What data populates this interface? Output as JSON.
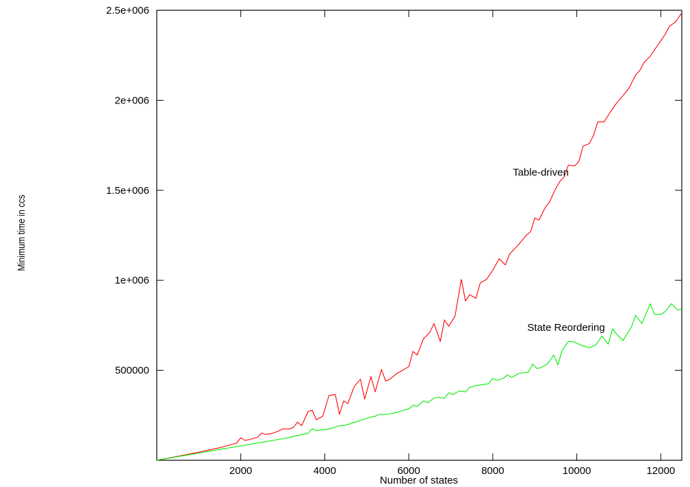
{
  "chart_data": {
    "type": "line",
    "title": "",
    "xlabel": "Number of states",
    "ylabel": "Minimum time in ccs",
    "xlim": [
      0,
      12500
    ],
    "ylim": [
      0,
      2500000
    ],
    "x_ticks": [
      2000,
      4000,
      6000,
      8000,
      10000,
      12000
    ],
    "x_tick_labels": [
      "2000",
      "4000",
      "6000",
      "8000",
      "10000",
      "12000"
    ],
    "y_ticks": [
      500000,
      1000000,
      1500000,
      2000000,
      2500000
    ],
    "y_tick_labels": [
      "500000",
      "1e+006",
      "1.5e+006",
      "2e+006",
      "2.5e+006"
    ],
    "grid": false,
    "legend": "none (series labeled inline on the plot)",
    "series": [
      {
        "name": "Table-driven",
        "color": "#ff0000",
        "label_at": [
          8000,
          1600000
        ],
        "points": [
          [
            0,
            0
          ],
          [
            500,
            22000
          ],
          [
            1000,
            45000
          ],
          [
            1500,
            70000
          ],
          [
            1900,
            95000
          ],
          [
            2000,
            125000
          ],
          [
            2100,
            110000
          ],
          [
            2250,
            118000
          ],
          [
            2400,
            128000
          ],
          [
            2500,
            152000
          ],
          [
            2600,
            143000
          ],
          [
            2750,
            150000
          ],
          [
            2900,
            162000
          ],
          [
            3000,
            175000
          ],
          [
            3150,
            174000
          ],
          [
            3250,
            182000
          ],
          [
            3350,
            212000
          ],
          [
            3450,
            192000
          ],
          [
            3600,
            270000
          ],
          [
            3700,
            278000
          ],
          [
            3800,
            225000
          ],
          [
            3950,
            245000
          ],
          [
            4100,
            360000
          ],
          [
            4250,
            365000
          ],
          [
            4350,
            255000
          ],
          [
            4450,
            330000
          ],
          [
            4550,
            315000
          ],
          [
            4700,
            410000
          ],
          [
            4850,
            450000
          ],
          [
            4950,
            340000
          ],
          [
            5100,
            465000
          ],
          [
            5200,
            380000
          ],
          [
            5350,
            505000
          ],
          [
            5450,
            440000
          ],
          [
            5550,
            450000
          ],
          [
            5700,
            480000
          ],
          [
            5850,
            500000
          ],
          [
            6000,
            520000
          ],
          [
            6100,
            605000
          ],
          [
            6200,
            585000
          ],
          [
            6350,
            675000
          ],
          [
            6500,
            710000
          ],
          [
            6600,
            760000
          ],
          [
            6750,
            660000
          ],
          [
            6850,
            780000
          ],
          [
            6950,
            745000
          ],
          [
            7100,
            800000
          ],
          [
            7250,
            1005000
          ],
          [
            7350,
            885000
          ],
          [
            7450,
            920000
          ],
          [
            7600,
            900000
          ],
          [
            7700,
            985000
          ],
          [
            7850,
            1005000
          ],
          [
            8000,
            1055000
          ],
          [
            8150,
            1120000
          ],
          [
            8300,
            1085000
          ],
          [
            8400,
            1145000
          ],
          [
            8600,
            1195000
          ],
          [
            8800,
            1250000
          ],
          [
            8900,
            1270000
          ],
          [
            9000,
            1345000
          ],
          [
            9100,
            1335000
          ],
          [
            9250,
            1405000
          ],
          [
            9350,
            1435000
          ],
          [
            9500,
            1510000
          ],
          [
            9600,
            1550000
          ],
          [
            9700,
            1575000
          ],
          [
            9800,
            1640000
          ],
          [
            9950,
            1635000
          ],
          [
            10050,
            1660000
          ],
          [
            10150,
            1745000
          ],
          [
            10300,
            1760000
          ],
          [
            10400,
            1805000
          ],
          [
            10500,
            1880000
          ],
          [
            10650,
            1880000
          ],
          [
            10800,
            1935000
          ],
          [
            10950,
            1985000
          ],
          [
            11100,
            2025000
          ],
          [
            11250,
            2070000
          ],
          [
            11400,
            2140000
          ],
          [
            11500,
            2165000
          ],
          [
            11600,
            2210000
          ],
          [
            11750,
            2245000
          ],
          [
            11850,
            2280000
          ],
          [
            12000,
            2330000
          ],
          [
            12100,
            2365000
          ],
          [
            12200,
            2410000
          ],
          [
            12350,
            2435000
          ],
          [
            12500,
            2485000
          ]
        ]
      },
      {
        "name": "State Reordering",
        "color": "#00ee00",
        "label_at": [
          8000,
          738000
        ],
        "points": [
          [
            0,
            0
          ],
          [
            500,
            20000
          ],
          [
            1000,
            40000
          ],
          [
            1500,
            60000
          ],
          [
            2000,
            80000
          ],
          [
            2500,
            100000
          ],
          [
            3000,
            120000
          ],
          [
            3200,
            130000
          ],
          [
            3400,
            140000
          ],
          [
            3600,
            150000
          ],
          [
            3700,
            175000
          ],
          [
            3800,
            165000
          ],
          [
            4000,
            170000
          ],
          [
            4200,
            180000
          ],
          [
            4300,
            190000
          ],
          [
            4500,
            195000
          ],
          [
            4700,
            210000
          ],
          [
            4900,
            225000
          ],
          [
            5100,
            240000
          ],
          [
            5200,
            245000
          ],
          [
            5300,
            255000
          ],
          [
            5500,
            255000
          ],
          [
            5700,
            265000
          ],
          [
            5900,
            280000
          ],
          [
            6000,
            285000
          ],
          [
            6100,
            305000
          ],
          [
            6200,
            300000
          ],
          [
            6350,
            330000
          ],
          [
            6450,
            320000
          ],
          [
            6600,
            345000
          ],
          [
            6700,
            350000
          ],
          [
            6850,
            345000
          ],
          [
            6950,
            375000
          ],
          [
            7050,
            365000
          ],
          [
            7200,
            385000
          ],
          [
            7350,
            380000
          ],
          [
            7450,
            405000
          ],
          [
            7600,
            415000
          ],
          [
            7750,
            420000
          ],
          [
            7900,
            425000
          ],
          [
            8000,
            455000
          ],
          [
            8100,
            445000
          ],
          [
            8250,
            455000
          ],
          [
            8350,
            475000
          ],
          [
            8450,
            460000
          ],
          [
            8600,
            480000
          ],
          [
            8700,
            485000
          ],
          [
            8850,
            490000
          ],
          [
            8950,
            535000
          ],
          [
            9050,
            510000
          ],
          [
            9150,
            515000
          ],
          [
            9300,
            535000
          ],
          [
            9450,
            585000
          ],
          [
            9550,
            530000
          ],
          [
            9650,
            610000
          ],
          [
            9800,
            660000
          ],
          [
            9900,
            660000
          ],
          [
            10100,
            640000
          ],
          [
            10300,
            625000
          ],
          [
            10450,
            640000
          ],
          [
            10600,
            690000
          ],
          [
            10750,
            645000
          ],
          [
            10850,
            730000
          ],
          [
            10950,
            700000
          ],
          [
            11100,
            665000
          ],
          [
            11300,
            740000
          ],
          [
            11400,
            805000
          ],
          [
            11550,
            760000
          ],
          [
            11750,
            870000
          ],
          [
            11850,
            810000
          ],
          [
            12000,
            810000
          ],
          [
            12100,
            825000
          ],
          [
            12250,
            870000
          ],
          [
            12400,
            835000
          ],
          [
            12500,
            840000
          ]
        ]
      }
    ]
  }
}
